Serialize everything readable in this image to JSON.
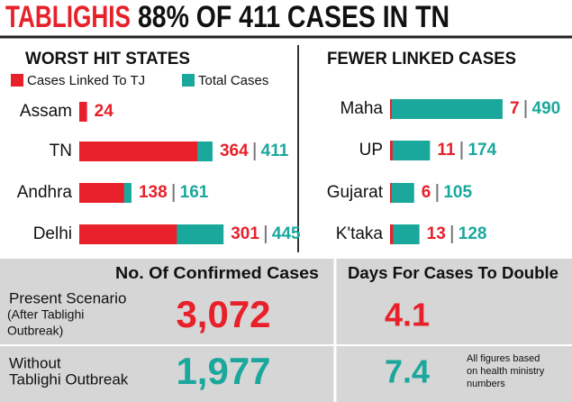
{
  "title": {
    "highlight": "TABLIGHIS",
    "rest": "88% OF 411 CASES IN TN"
  },
  "chart_data": [
    {
      "type": "bar",
      "title": "WORST HIT STATES",
      "categories": [
        "Assam",
        "TN",
        "Andhra",
        "Delhi"
      ],
      "series": [
        {
          "name": "Cases Linked To TJ",
          "color": "#e8202a",
          "values": [
            24,
            364,
            138,
            301
          ]
        },
        {
          "name": "Total Cases",
          "color": "#1ba89c",
          "values": [
            null,
            411,
            161,
            445
          ]
        }
      ]
    },
    {
      "type": "bar",
      "title": "FEWER LINKED CASES",
      "categories": [
        "Maha",
        "UP",
        "Gujarat",
        "K'taka"
      ],
      "series": [
        {
          "color": "#e8202a",
          "values": [
            7,
            11,
            6,
            13
          ]
        },
        {
          "color": "#1ba89c",
          "values": [
            490,
            174,
            105,
            128
          ]
        }
      ]
    }
  ],
  "table": {
    "header": [
      "No. Of Confirmed Cases",
      "Days For Cases To Double"
    ],
    "rows": [
      {
        "label": [
          "Present Scenario",
          "(After Tablighi",
          "Outbreak)"
        ],
        "color": "#e8202a",
        "values": [
          "3,072",
          "4.1"
        ]
      },
      {
        "label": [
          "Without",
          "Tablighi Outbreak"
        ],
        "color": "#1ba89c",
        "values": [
          "1,977",
          "7.4"
        ]
      }
    ]
  },
  "footnote": [
    "All figures based",
    "on health ministry",
    "numbers"
  ]
}
